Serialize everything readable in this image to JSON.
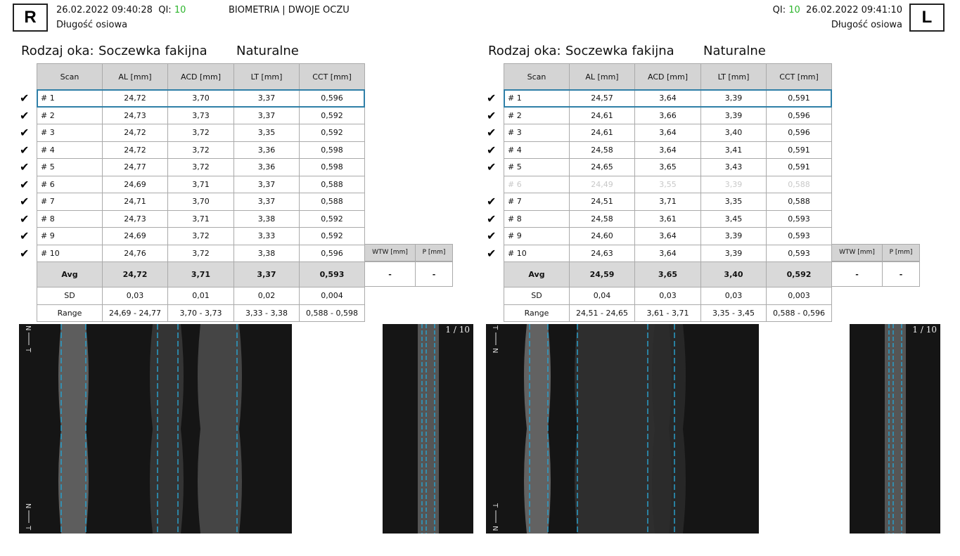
{
  "header": {
    "title": "BIOMETRIA | DWOJE OCZU",
    "right_eye": {
      "letter": "R",
      "datetime": "26.02.2022 09:40:28",
      "qi_label": "QI:",
      "qi": "10",
      "subtitle": "Długość osiowa"
    },
    "left_eye": {
      "letter": "L",
      "datetime": "26.02.2022 09:41:10",
      "qi_label": "QI:",
      "qi": "10",
      "subtitle": "Długość osiowa"
    }
  },
  "eyes": [
    {
      "eye_label": "Rodzaj oka:",
      "lens": "Soczewka fakijna",
      "lens_type": "Naturalne",
      "columns": [
        "Scan",
        "AL [mm]",
        "ACD [mm]",
        "LT [mm]",
        "CCT [mm]"
      ],
      "rows": [
        [
          "# 1",
          "24,72",
          "3,70",
          "3,37",
          "0,596"
        ],
        [
          "# 2",
          "24,73",
          "3,73",
          "3,37",
          "0,592"
        ],
        [
          "# 3",
          "24,72",
          "3,72",
          "3,35",
          "0,592"
        ],
        [
          "# 4",
          "24,72",
          "3,72",
          "3,36",
          "0,598"
        ],
        [
          "# 5",
          "24,77",
          "3,72",
          "3,36",
          "0,598"
        ],
        [
          "# 6",
          "24,69",
          "3,71",
          "3,37",
          "0,588"
        ],
        [
          "# 7",
          "24,71",
          "3,70",
          "3,37",
          "0,588"
        ],
        [
          "# 8",
          "24,73",
          "3,71",
          "3,38",
          "0,592"
        ],
        [
          "# 9",
          "24,69",
          "3,72",
          "3,33",
          "0,592"
        ],
        [
          "# 10",
          "24,76",
          "3,72",
          "3,38",
          "0,596"
        ]
      ],
      "selected": [
        true,
        true,
        true,
        true,
        true,
        true,
        true,
        true,
        true,
        true
      ],
      "avg": [
        "Avg",
        "24,72",
        "3,71",
        "3,37",
        "0,593"
      ],
      "sd": [
        "SD",
        "0,03",
        "0,01",
        "0,02",
        "0,004"
      ],
      "range": [
        "Range",
        "24,69 - 24,77",
        "3,70 - 3,73",
        "3,33 - 3,38",
        "0,588 - 0,598"
      ],
      "extra_columns": [
        "WTW [mm]",
        "P [mm]"
      ],
      "extra_values": [
        "-",
        "-"
      ],
      "scan_counter": "1 / 10",
      "orient_top": [
        "N",
        "T"
      ],
      "orient_bottom": [
        "N",
        "T"
      ]
    },
    {
      "eye_label": "Rodzaj oka:",
      "lens": "Soczewka fakijna",
      "lens_type": "Naturalne",
      "columns": [
        "Scan",
        "AL [mm]",
        "ACD [mm]",
        "LT [mm]",
        "CCT [mm]"
      ],
      "rows": [
        [
          "# 1",
          "24,57",
          "3,64",
          "3,39",
          "0,591"
        ],
        [
          "# 2",
          "24,61",
          "3,66",
          "3,39",
          "0,596"
        ],
        [
          "# 3",
          "24,61",
          "3,64",
          "3,40",
          "0,596"
        ],
        [
          "# 4",
          "24,58",
          "3,64",
          "3,41",
          "0,591"
        ],
        [
          "# 5",
          "24,65",
          "3,65",
          "3,43",
          "0,591"
        ],
        [
          "# 6",
          "24,49",
          "3,55",
          "3,39",
          "0,588"
        ],
        [
          "# 7",
          "24,51",
          "3,71",
          "3,35",
          "0,588"
        ],
        [
          "# 8",
          "24,58",
          "3,61",
          "3,45",
          "0,593"
        ],
        [
          "# 9",
          "24,60",
          "3,64",
          "3,39",
          "0,593"
        ],
        [
          "# 10",
          "24,63",
          "3,64",
          "3,39",
          "0,593"
        ]
      ],
      "selected": [
        true,
        true,
        true,
        true,
        true,
        false,
        true,
        true,
        true,
        true
      ],
      "avg": [
        "Avg",
        "24,59",
        "3,65",
        "3,40",
        "0,592"
      ],
      "sd": [
        "SD",
        "0,04",
        "0,03",
        "0,03",
        "0,003"
      ],
      "range": [
        "Range",
        "24,51 - 24,65",
        "3,61 - 3,71",
        "3,35 - 3,45",
        "0,588 - 0,596"
      ],
      "extra_columns": [
        "WTW [mm]",
        "P [mm]"
      ],
      "extra_values": [
        "-",
        "-"
      ],
      "scan_counter": "1 / 10",
      "orient_top": [
        "T",
        "N"
      ],
      "orient_bottom": [
        "T",
        "N"
      ]
    }
  ]
}
